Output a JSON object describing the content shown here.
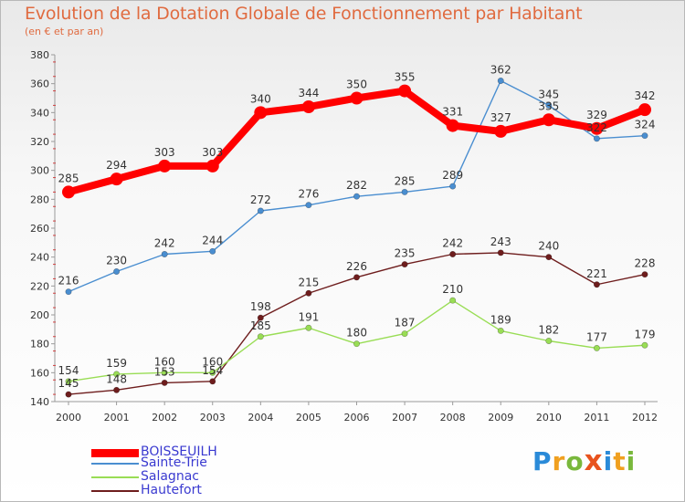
{
  "title": "Evolution de la Dotation Globale de Fonctionnement par Habitant",
  "subtitle": "(en € et par an)",
  "chart_data": {
    "type": "line",
    "x": [
      "2000",
      "2001",
      "2002",
      "2003",
      "2004",
      "2005",
      "2006",
      "2007",
      "2008",
      "2009",
      "2010",
      "2011",
      "2012"
    ],
    "ylim": [
      140,
      380
    ],
    "yticks": [
      140,
      160,
      180,
      200,
      220,
      240,
      260,
      280,
      300,
      320,
      340,
      360,
      380
    ],
    "grid": false,
    "legend_position": "bottom-left",
    "series": [
      {
        "name": "BOISSEUILH",
        "color": "#ff0000",
        "values": [
          285,
          294,
          303,
          303,
          340,
          344,
          350,
          355,
          331,
          327,
          335,
          329,
          342
        ]
      },
      {
        "name": "Sainte-Trie",
        "color": "#4a8ed0",
        "values": [
          216,
          230,
          242,
          244,
          272,
          276,
          282,
          285,
          289,
          362,
          345,
          322,
          324
        ]
      },
      {
        "name": "Salagnac",
        "color": "#99dd55",
        "values": [
          154,
          159,
          160,
          160,
          185,
          191,
          180,
          187,
          210,
          189,
          182,
          177,
          179
        ]
      },
      {
        "name": "Hautefort",
        "color": "#6e1d1d",
        "values": [
          145,
          148,
          153,
          154,
          198,
          215,
          226,
          235,
          242,
          243,
          240,
          221,
          228
        ]
      }
    ]
  },
  "logo": {
    "text": [
      "P",
      "r",
      "o",
      "x",
      "i",
      "t",
      "i"
    ]
  }
}
